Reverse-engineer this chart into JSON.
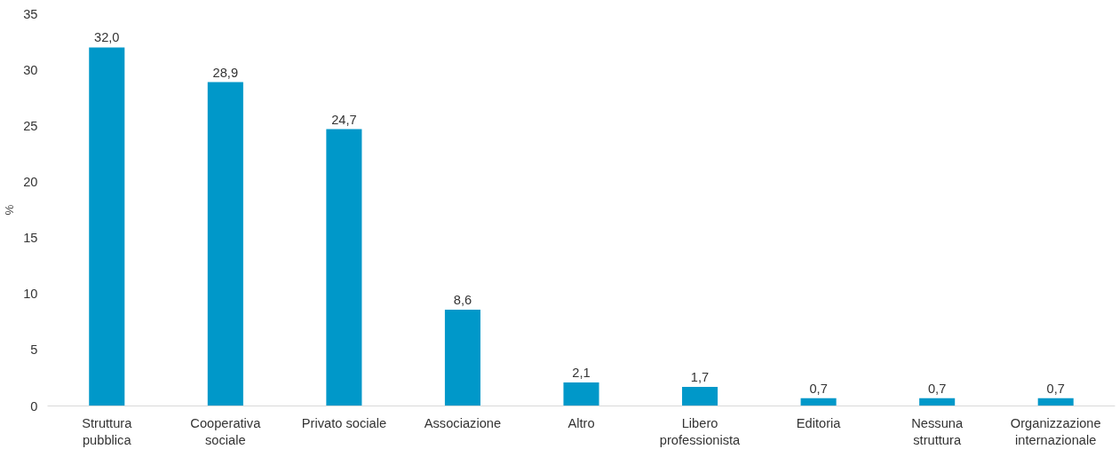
{
  "chart_data": {
    "type": "bar",
    "ylabel": "%",
    "categories": [
      "Struttura\npubblica",
      "Cooperativa\nsociale",
      "Privato sociale",
      "Associazione",
      "Altro",
      "Libero\nprofessionista",
      "Editoria",
      "Nessuna\nstruttura",
      "Organizzazione\ninternazionale"
    ],
    "values": [
      32.0,
      28.9,
      24.7,
      8.6,
      2.1,
      1.7,
      0.7,
      0.7,
      0.7
    ],
    "value_labels": [
      "32,0",
      "28,9",
      "24,7",
      "8,6",
      "2,1",
      "1,7",
      "0,7",
      "0,7",
      "0,7"
    ],
    "color": "#0098c9",
    "ylim": [
      0,
      35
    ],
    "yticks": [
      0,
      5,
      10,
      15,
      20,
      25,
      30,
      35
    ],
    "grid": false
  }
}
